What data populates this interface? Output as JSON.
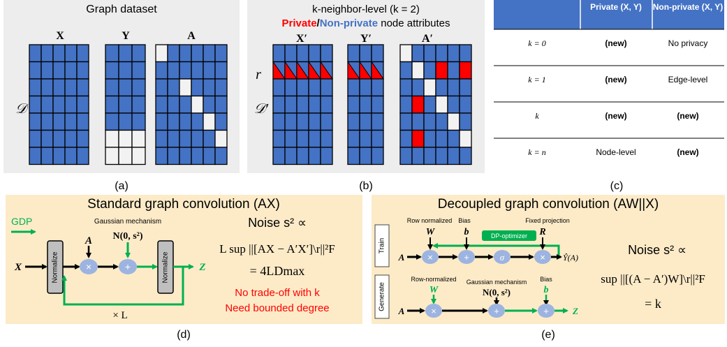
{
  "panel_a": {
    "title": "Graph dataset",
    "x_label": "X",
    "y_label": "Y",
    "a_label": "A",
    "d_label": "𝒟",
    "caption": "(a)"
  },
  "panel_b": {
    "title": "k-neighbor-level (k = 2)",
    "private_word": "Private",
    "slash": "/",
    "nonprivate_word": "Non-private",
    "attrs_text": "node attributes",
    "x_label": "X′",
    "y_label": "Y′",
    "a_label": "A′",
    "r_label": "r",
    "d_label": "𝒟′",
    "caption": "(b)"
  },
  "panel_c": {
    "headers": [
      "",
      "Private (X, Y)",
      "Non-private (X, Y)"
    ],
    "rows": [
      [
        "k = 0",
        "(new)",
        "No privacy"
      ],
      [
        "k = 1",
        "(new)",
        "Edge-level"
      ],
      [
        "k",
        "(new)",
        "(new)"
      ],
      [
        "k = n",
        "Node-level",
        "(new)"
      ]
    ],
    "caption": "(c)"
  },
  "panel_d": {
    "title": "Standard graph convolution (AX)",
    "gdp_label": "GDP",
    "gaussian_label": "Gaussian mechanism",
    "noise_dist": "N(0, s²)",
    "a_input": "A",
    "x_input": "X",
    "z_output": "Z",
    "normalize_label": "Normalize",
    "times_symbol": "×",
    "plus_symbol": "+",
    "loop_label": "× L",
    "noise_title": "Noise s² ∝",
    "formula_line1": "L sup ||[AX − A′X′]\\r||²F",
    "formula_line2": "= 4LDmax",
    "note1": "No trade-off with k",
    "note2": "Need bounded degree",
    "caption": "(d)"
  },
  "panel_e": {
    "title": "Decoupled graph convolution (AW||X)",
    "train_label": "Train",
    "generate_label": "Generate",
    "row_normalized": "Row normalized",
    "row_normalized2": "Row-normalized",
    "bias_label": "Bias",
    "fixed_projection": "Fixed projection",
    "dp_optimizer": "DP-optimizer",
    "gaussian_label": "Gaussian mechanism",
    "noise_dist": "N(0, s²)",
    "w_label": "W",
    "b_label": "b",
    "r_label": "R",
    "a_input": "A",
    "sigma": "σ",
    "y_hat": "Ŷ(A)",
    "z_output": "Z",
    "times_symbol": "×",
    "plus_symbol": "+",
    "noise_title": "Noise s² ∝",
    "formula_line1": "sup ||[(A − A′)W]\\r||²F",
    "formula_line2": "= k",
    "caption": "(e)"
  },
  "colors": {
    "blue_cell": "#4472C4",
    "red_cell": "#FF0000",
    "grey_panel": "#EDEDED",
    "table_header": "#4472C4",
    "yellow_panel": "#FDEBC8",
    "green": "#00B050",
    "node_fill": "#9DB4E0"
  }
}
